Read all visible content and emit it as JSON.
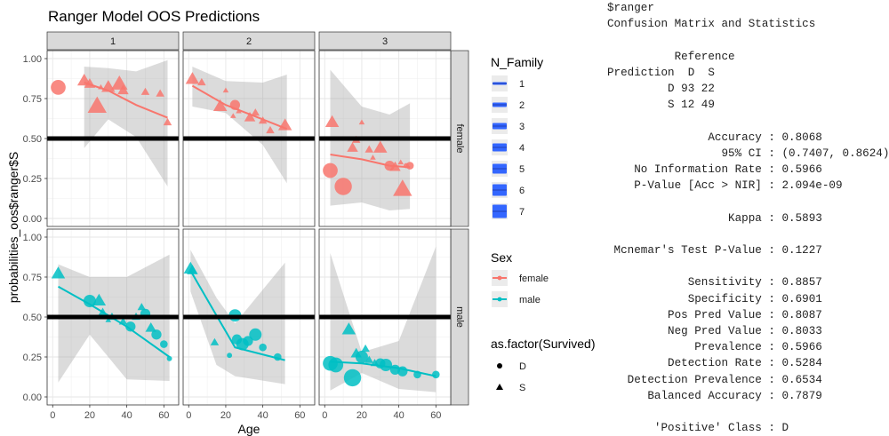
{
  "chart_data": {
    "type": "scatter",
    "title": "Ranger Model OOS Predictions",
    "xlabel": "Age",
    "ylabel": "probabilities_oos$ranger$S",
    "xlim": [
      -3,
      68
    ],
    "ylim": [
      -0.05,
      1.05
    ],
    "xticks": [
      0,
      20,
      40,
      60
    ],
    "xtick_labels": [
      "0",
      "20",
      "40",
      "60"
    ],
    "yticks": [
      0,
      0.25,
      0.5,
      0.75,
      1
    ],
    "ytick_labels": [
      "0.00",
      "0.25",
      "0.50",
      "0.75",
      "1.00"
    ],
    "threshold": 0.5,
    "grid": true,
    "colors": {
      "female": "#F8766D",
      "male": "#00BFC4",
      "ribbon": "#999999",
      "strip": "#D9D9D9",
      "legend_family": "#3366FF",
      "hline": "#000000"
    },
    "col_facets": [
      "1",
      "2",
      "3"
    ],
    "row_facets": [
      "female",
      "male"
    ],
    "panels": [
      {
        "row": 0,
        "col": 0,
        "sex": "female",
        "points": [
          [
            3,
            0.82,
            5,
            "D"
          ],
          [
            17,
            0.86,
            4,
            "S"
          ],
          [
            20,
            0.84,
            3,
            "S"
          ],
          [
            24,
            0.7,
            6,
            "S"
          ],
          [
            30,
            0.82,
            4,
            "S"
          ],
          [
            36,
            0.84,
            5,
            "S"
          ],
          [
            38,
            0.8,
            3,
            "S"
          ],
          [
            50,
            0.79,
            2,
            "S"
          ],
          [
            58,
            0.78,
            2,
            "S"
          ],
          [
            62,
            0.6,
            2,
            "S"
          ],
          [
            26,
            0.82,
            1,
            "S"
          ]
        ],
        "fit": [
          [
            17,
            0.85
          ],
          [
            30,
            0.8
          ],
          [
            45,
            0.71
          ],
          [
            62,
            0.63
          ]
        ],
        "band": [
          [
            17,
            0.95,
            0.44
          ],
          [
            30,
            0.94,
            0.62
          ],
          [
            45,
            0.92,
            0.51
          ],
          [
            62,
            0.99,
            0.2
          ]
        ]
      },
      {
        "row": 0,
        "col": 1,
        "sex": "female",
        "points": [
          [
            2,
            0.87,
            4,
            "S"
          ],
          [
            7,
            0.85,
            2,
            "S"
          ],
          [
            17,
            0.7,
            4,
            "S"
          ],
          [
            24,
            0.64,
            1,
            "S"
          ],
          [
            25,
            0.71,
            3,
            "D"
          ],
          [
            27,
            0.67,
            1,
            "S"
          ],
          [
            33,
            0.63,
            3,
            "S"
          ],
          [
            36,
            0.66,
            2,
            "S"
          ],
          [
            40,
            0.61,
            2,
            "S"
          ],
          [
            44,
            0.55,
            2,
            "S"
          ],
          [
            52,
            0.58,
            4,
            "S"
          ],
          [
            20,
            0.8,
            1,
            "S"
          ]
        ],
        "fit": [
          [
            2,
            0.83
          ],
          [
            20,
            0.71
          ],
          [
            40,
            0.62
          ],
          [
            53,
            0.56
          ]
        ],
        "band": [
          [
            2,
            0.95,
            0.7
          ],
          [
            20,
            0.86,
            0.66
          ],
          [
            40,
            0.85,
            0.46
          ],
          [
            53,
            0.9,
            0.22
          ]
        ]
      },
      {
        "row": 0,
        "col": 2,
        "sex": "female",
        "points": [
          [
            3,
            0.3,
            5,
            "D"
          ],
          [
            4,
            0.6,
            4,
            "S"
          ],
          [
            10,
            0.2,
            6,
            "D"
          ],
          [
            15,
            0.44,
            3,
            "S"
          ],
          [
            17,
            0.49,
            2,
            "S"
          ],
          [
            24,
            0.43,
            2,
            "S"
          ],
          [
            26,
            0.38,
            1,
            "S"
          ],
          [
            30,
            0.44,
            4,
            "S"
          ],
          [
            35,
            0.33,
            3,
            "D"
          ],
          [
            38,
            0.32,
            3,
            "S"
          ],
          [
            41,
            0.35,
            1,
            "S"
          ],
          [
            42,
            0.18,
            6,
            "S"
          ],
          [
            44,
            0.33,
            1,
            "D"
          ],
          [
            46,
            0.33,
            2,
            "D"
          ],
          [
            20,
            0.6,
            1,
            "S"
          ]
        ],
        "fit": [
          [
            3,
            0.4
          ],
          [
            20,
            0.37
          ],
          [
            35,
            0.33
          ],
          [
            46,
            0.32
          ]
        ],
        "band": [
          [
            3,
            0.93,
            0.08
          ],
          [
            20,
            0.7,
            0.1
          ],
          [
            35,
            0.65,
            0.05
          ],
          [
            46,
            0.72,
            0.06
          ]
        ]
      },
      {
        "row": 1,
        "col": 0,
        "sex": "male",
        "points": [
          [
            3,
            0.77,
            4,
            "S"
          ],
          [
            20,
            0.6,
            4,
            "D"
          ],
          [
            25,
            0.6,
            4,
            "S"
          ],
          [
            27,
            0.53,
            2,
            "S"
          ],
          [
            32,
            0.5,
            2,
            "S"
          ],
          [
            38,
            0.47,
            2,
            "S"
          ],
          [
            42,
            0.44,
            3,
            "D"
          ],
          [
            45,
            0.5,
            2,
            "S"
          ],
          [
            48,
            0.56,
            2,
            "S"
          ],
          [
            50,
            0.52,
            3,
            "D"
          ],
          [
            53,
            0.43,
            3,
            "S"
          ],
          [
            56,
            0.39,
            3,
            "D"
          ],
          [
            60,
            0.33,
            2,
            "D"
          ],
          [
            63,
            0.24,
            1,
            "D"
          ],
          [
            30,
            0.48,
            1,
            "S"
          ]
        ],
        "fit": [
          [
            3,
            0.69
          ],
          [
            20,
            0.58
          ],
          [
            40,
            0.44
          ],
          [
            63,
            0.25
          ]
        ],
        "band": [
          [
            3,
            0.83,
            0.09
          ],
          [
            20,
            0.75,
            0.39
          ],
          [
            40,
            0.75,
            0.11
          ],
          [
            63,
            0.89,
            0.1
          ]
        ]
      },
      {
        "row": 1,
        "col": 1,
        "sex": "male",
        "points": [
          [
            1,
            0.8,
            4,
            "S"
          ],
          [
            2,
            0.79,
            3,
            "S"
          ],
          [
            14,
            0.34,
            2,
            "S"
          ],
          [
            22,
            0.26,
            1,
            "D"
          ],
          [
            25,
            0.51,
            4,
            "D"
          ],
          [
            26,
            0.36,
            3,
            "D"
          ],
          [
            29,
            0.33,
            4,
            "D"
          ],
          [
            32,
            0.35,
            3,
            "D"
          ],
          [
            36,
            0.39,
            4,
            "D"
          ],
          [
            40,
            0.31,
            2,
            "D"
          ],
          [
            48,
            0.25,
            2,
            "D"
          ]
        ],
        "fit": [
          [
            1,
            0.79
          ],
          [
            15,
            0.51
          ],
          [
            25,
            0.31
          ],
          [
            52,
            0.23
          ]
        ],
        "band": [
          [
            1,
            0.92,
            0.66
          ],
          [
            15,
            0.62,
            0.2
          ],
          [
            25,
            0.46,
            0.13
          ],
          [
            52,
            0.84,
            0.08
          ]
        ]
      },
      {
        "row": 1,
        "col": 2,
        "sex": "male",
        "points": [
          [
            3,
            0.21,
            5,
            "D"
          ],
          [
            6,
            0.2,
            5,
            "D"
          ],
          [
            13,
            0.42,
            4,
            "S"
          ],
          [
            15,
            0.12,
            6,
            "D"
          ],
          [
            17,
            0.27,
            3,
            "S"
          ],
          [
            20,
            0.25,
            4,
            "D"
          ],
          [
            22,
            0.3,
            2,
            "S"
          ],
          [
            24,
            0.23,
            2,
            "S"
          ],
          [
            27,
            0.21,
            2,
            "S"
          ],
          [
            30,
            0.21,
            3,
            "D"
          ],
          [
            33,
            0.2,
            4,
            "D"
          ],
          [
            38,
            0.17,
            3,
            "D"
          ],
          [
            42,
            0.16,
            3,
            "D"
          ],
          [
            50,
            0.14,
            2,
            "D"
          ],
          [
            60,
            0.14,
            2,
            "D"
          ]
        ],
        "fit": [
          [
            3,
            0.22
          ],
          [
            20,
            0.21
          ],
          [
            40,
            0.18
          ],
          [
            60,
            0.13
          ]
        ],
        "band": [
          [
            3,
            0.9,
            0.04
          ],
          [
            20,
            0.28,
            0.15
          ],
          [
            40,
            0.35,
            0.05
          ],
          [
            60,
            0.94,
            0.03
          ]
        ]
      }
    ],
    "legend_family": {
      "title": "N_Family",
      "items": [
        "1",
        "2",
        "3",
        "4",
        "5",
        "6",
        "7"
      ]
    },
    "legend_sex": {
      "title": "Sex",
      "items": [
        "female",
        "male"
      ]
    },
    "legend_survived": {
      "title": "as.factor(Survived)",
      "items": [
        "D",
        "S"
      ]
    }
  },
  "console": {
    "lines": [
      "$ranger",
      "Confusion Matrix and Statistics",
      "",
      "          Reference",
      "Prediction  D  S",
      "         D 93 22",
      "         S 12 49",
      "",
      "               Accuracy : 0.8068",
      "                 95% CI : (0.7407, 0.8624)",
      "    No Information Rate : 0.5966",
      "    P-Value [Acc > NIR] : 2.094e-09",
      "",
      "                  Kappa : 0.5893",
      "",
      " Mcnemar's Test P-Value : 0.1227",
      "",
      "            Sensitivity : 0.8857",
      "            Specificity : 0.6901",
      "         Pos Pred Value : 0.8087",
      "         Neg Pred Value : 0.8033",
      "             Prevalence : 0.5966",
      "         Detection Rate : 0.5284",
      "   Detection Prevalence : 0.6534",
      "      Balanced Accuracy : 0.7879",
      "",
      "       'Positive' Class : D"
    ]
  }
}
